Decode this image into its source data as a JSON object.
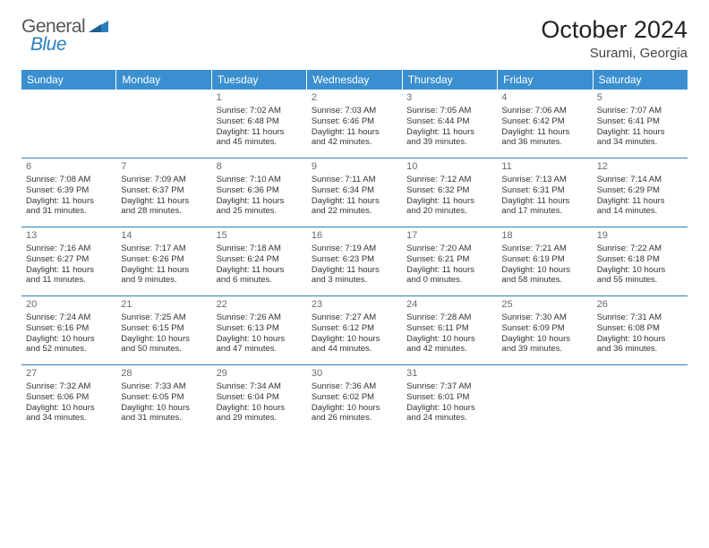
{
  "brand": {
    "part1": "General",
    "part2": "Blue"
  },
  "title": "October 2024",
  "location": "Surami, Georgia",
  "colors": {
    "header_bg": "#3a8fd0",
    "header_text": "#ffffff",
    "row_border": "#2a7fbf",
    "daynum_color": "#6b6b6b",
    "body_text": "#333333",
    "shaded_bg": "#e8e8e8"
  },
  "weekdays": [
    "Sunday",
    "Monday",
    "Tuesday",
    "Wednesday",
    "Thursday",
    "Friday",
    "Saturday"
  ],
  "weeks": [
    [
      {
        "day": "",
        "lines": []
      },
      {
        "day": "",
        "lines": []
      },
      {
        "day": "1",
        "lines": [
          "Sunrise: 7:02 AM",
          "Sunset: 6:48 PM",
          "Daylight: 11 hours",
          "and 45 minutes."
        ]
      },
      {
        "day": "2",
        "lines": [
          "Sunrise: 7:03 AM",
          "Sunset: 6:46 PM",
          "Daylight: 11 hours",
          "and 42 minutes."
        ]
      },
      {
        "day": "3",
        "lines": [
          "Sunrise: 7:05 AM",
          "Sunset: 6:44 PM",
          "Daylight: 11 hours",
          "and 39 minutes."
        ]
      },
      {
        "day": "4",
        "lines": [
          "Sunrise: 7:06 AM",
          "Sunset: 6:42 PM",
          "Daylight: 11 hours",
          "and 36 minutes."
        ]
      },
      {
        "day": "5",
        "lines": [
          "Sunrise: 7:07 AM",
          "Sunset: 6:41 PM",
          "Daylight: 11 hours",
          "and 34 minutes."
        ]
      }
    ],
    [
      {
        "day": "6",
        "lines": [
          "Sunrise: 7:08 AM",
          "Sunset: 6:39 PM",
          "Daylight: 11 hours",
          "and 31 minutes."
        ]
      },
      {
        "day": "7",
        "lines": [
          "Sunrise: 7:09 AM",
          "Sunset: 6:37 PM",
          "Daylight: 11 hours",
          "and 28 minutes."
        ]
      },
      {
        "day": "8",
        "lines": [
          "Sunrise: 7:10 AM",
          "Sunset: 6:36 PM",
          "Daylight: 11 hours",
          "and 25 minutes."
        ]
      },
      {
        "day": "9",
        "lines": [
          "Sunrise: 7:11 AM",
          "Sunset: 6:34 PM",
          "Daylight: 11 hours",
          "and 22 minutes."
        ]
      },
      {
        "day": "10",
        "lines": [
          "Sunrise: 7:12 AM",
          "Sunset: 6:32 PM",
          "Daylight: 11 hours",
          "and 20 minutes."
        ]
      },
      {
        "day": "11",
        "lines": [
          "Sunrise: 7:13 AM",
          "Sunset: 6:31 PM",
          "Daylight: 11 hours",
          "and 17 minutes."
        ]
      },
      {
        "day": "12",
        "lines": [
          "Sunrise: 7:14 AM",
          "Sunset: 6:29 PM",
          "Daylight: 11 hours",
          "and 14 minutes."
        ]
      }
    ],
    [
      {
        "day": "13",
        "lines": [
          "Sunrise: 7:16 AM",
          "Sunset: 6:27 PM",
          "Daylight: 11 hours",
          "and 11 minutes."
        ]
      },
      {
        "day": "14",
        "lines": [
          "Sunrise: 7:17 AM",
          "Sunset: 6:26 PM",
          "Daylight: 11 hours",
          "and 9 minutes."
        ]
      },
      {
        "day": "15",
        "lines": [
          "Sunrise: 7:18 AM",
          "Sunset: 6:24 PM",
          "Daylight: 11 hours",
          "and 6 minutes."
        ]
      },
      {
        "day": "16",
        "lines": [
          "Sunrise: 7:19 AM",
          "Sunset: 6:23 PM",
          "Daylight: 11 hours",
          "and 3 minutes."
        ]
      },
      {
        "day": "17",
        "lines": [
          "Sunrise: 7:20 AM",
          "Sunset: 6:21 PM",
          "Daylight: 11 hours",
          "and 0 minutes."
        ]
      },
      {
        "day": "18",
        "lines": [
          "Sunrise: 7:21 AM",
          "Sunset: 6:19 PM",
          "Daylight: 10 hours",
          "and 58 minutes."
        ]
      },
      {
        "day": "19",
        "lines": [
          "Sunrise: 7:22 AM",
          "Sunset: 6:18 PM",
          "Daylight: 10 hours",
          "and 55 minutes."
        ]
      }
    ],
    [
      {
        "day": "20",
        "lines": [
          "Sunrise: 7:24 AM",
          "Sunset: 6:16 PM",
          "Daylight: 10 hours",
          "and 52 minutes."
        ]
      },
      {
        "day": "21",
        "lines": [
          "Sunrise: 7:25 AM",
          "Sunset: 6:15 PM",
          "Daylight: 10 hours",
          "and 50 minutes."
        ]
      },
      {
        "day": "22",
        "lines": [
          "Sunrise: 7:26 AM",
          "Sunset: 6:13 PM",
          "Daylight: 10 hours",
          "and 47 minutes."
        ]
      },
      {
        "day": "23",
        "lines": [
          "Sunrise: 7:27 AM",
          "Sunset: 6:12 PM",
          "Daylight: 10 hours",
          "and 44 minutes."
        ]
      },
      {
        "day": "24",
        "lines": [
          "Sunrise: 7:28 AM",
          "Sunset: 6:11 PM",
          "Daylight: 10 hours",
          "and 42 minutes."
        ]
      },
      {
        "day": "25",
        "lines": [
          "Sunrise: 7:30 AM",
          "Sunset: 6:09 PM",
          "Daylight: 10 hours",
          "and 39 minutes."
        ]
      },
      {
        "day": "26",
        "lines": [
          "Sunrise: 7:31 AM",
          "Sunset: 6:08 PM",
          "Daylight: 10 hours",
          "and 36 minutes."
        ]
      }
    ],
    [
      {
        "day": "27",
        "lines": [
          "Sunrise: 7:32 AM",
          "Sunset: 6:06 PM",
          "Daylight: 10 hours",
          "and 34 minutes."
        ]
      },
      {
        "day": "28",
        "lines": [
          "Sunrise: 7:33 AM",
          "Sunset: 6:05 PM",
          "Daylight: 10 hours",
          "and 31 minutes."
        ]
      },
      {
        "day": "29",
        "lines": [
          "Sunrise: 7:34 AM",
          "Sunset: 6:04 PM",
          "Daylight: 10 hours",
          "and 29 minutes."
        ]
      },
      {
        "day": "30",
        "lines": [
          "Sunrise: 7:36 AM",
          "Sunset: 6:02 PM",
          "Daylight: 10 hours",
          "and 26 minutes."
        ]
      },
      {
        "day": "31",
        "lines": [
          "Sunrise: 7:37 AM",
          "Sunset: 6:01 PM",
          "Daylight: 10 hours",
          "and 24 minutes."
        ]
      },
      {
        "day": "",
        "lines": []
      },
      {
        "day": "",
        "lines": []
      }
    ]
  ]
}
